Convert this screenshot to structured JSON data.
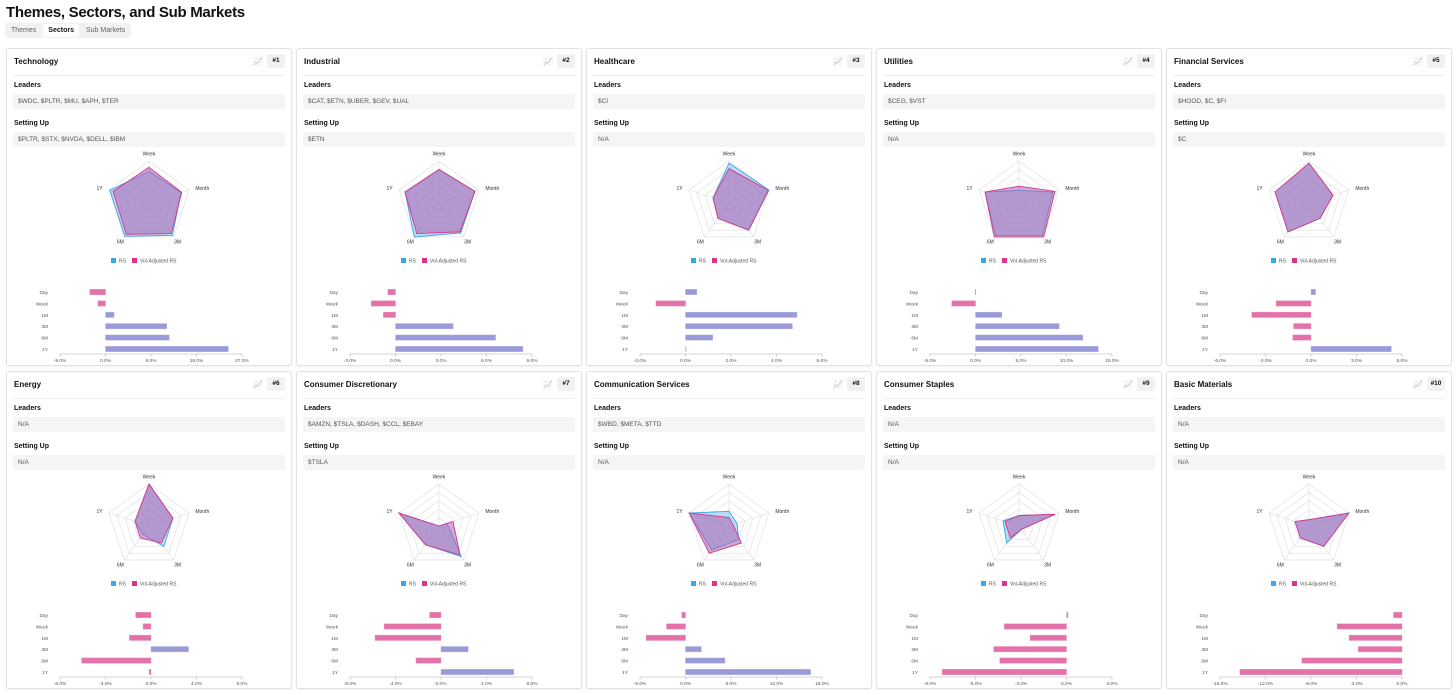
{
  "page_title": "Themes, Sectors, and Sub Markets",
  "tabs": [
    {
      "label": "Themes",
      "active": false
    },
    {
      "label": "Sectors",
      "active": true
    },
    {
      "label": "Sub Markets",
      "active": false
    }
  ],
  "labels": {
    "leaders": "Leaders",
    "setting_up": "Setting Up",
    "legend_rs": "RS",
    "legend_vol": "Vol-Adjusted RS",
    "chart_icon": "chart-icon"
  },
  "colors": {
    "rs": "#3aa6e6",
    "vol": "#d9358a",
    "pos_bar": "#9a9ad8",
    "neg_bar": "#e272a8"
  },
  "radar_axes": [
    "Week",
    "Month",
    "3M",
    "6M",
    "1Y"
  ],
  "bar_rows": [
    "Day",
    "Week",
    "1M",
    "3M",
    "6M",
    "1Y"
  ],
  "cards": [
    {
      "title": "Technology",
      "rank": "#1",
      "leaders": "$WDC, $PLTR, $MU, $APH, $TER",
      "setting_up": "$PLTR, $STX, $NVDA, $DELL, $IBM",
      "radar": {
        "rs": [
          75,
          80,
          95,
          98,
          98
        ],
        "vol": [
          85,
          82,
          90,
          92,
          90
        ]
      },
      "bars": {
        "values": [
          -3.1,
          -1.5,
          1.7,
          12.1,
          12.6,
          24.3
        ],
        "min": -9,
        "max": 27,
        "ticks": [
          "-9.0%",
          "0.0%",
          "9.0%",
          "18.0%",
          "27.0%"
        ]
      }
    },
    {
      "title": "Industrial",
      "rank": "#2",
      "leaders": "$CAT, $ETN, $UBER, $GEV, $UAL",
      "setting_up": "$ETN",
      "radar": {
        "rs": [
          80,
          90,
          88,
          100,
          85
        ],
        "vol": [
          80,
          90,
          85,
          90,
          85
        ]
      },
      "bars": {
        "values": [
          -0.5,
          -1.6,
          -0.8,
          3.8,
          6.6,
          8.4
        ],
        "min": -3,
        "max": 9,
        "ticks": [
          "-3.0%",
          "0.0%",
          "3.0%",
          "6.0%",
          "9.0%"
        ]
      }
    },
    {
      "title": "Healthcare",
      "rank": "#3",
      "leaders": "$CI",
      "setting_up": "N/A",
      "radar": {
        "rs": [
          95,
          100,
          80,
          45,
          40
        ],
        "vol": [
          82,
          98,
          80,
          45,
          40
        ]
      },
      "bars": {
        "values": [
          0.5,
          -1.3,
          4.9,
          4.7,
          1.2,
          0
        ],
        "min": -2,
        "max": 6,
        "ticks": [
          "-2.0%",
          "0.0%",
          "2.0%",
          "4.0%",
          "6.0%"
        ]
      }
    },
    {
      "title": "Utilities",
      "rank": "#4",
      "leaders": "$CEG, $VST",
      "setting_up": "N/A",
      "radar": {
        "rs": [
          30,
          85,
          95,
          95,
          85
        ],
        "vol": [
          40,
          90,
          100,
          100,
          85
        ]
      },
      "bars": {
        "values": [
          -0.05,
          -2.6,
          2.9,
          9.2,
          11.8,
          13.5
        ],
        "min": -5,
        "max": 15,
        "ticks": [
          "-5.0%",
          "0.0%",
          "5.0%",
          "10.0%",
          "15.0%"
        ]
      }
    },
    {
      "title": "Financial Services",
      "rank": "#5",
      "leaders": "$HOOD, $C, $FI",
      "setting_up": "$C",
      "radar": {
        "rs": [
          95,
          60,
          45,
          85,
          85
        ],
        "vol": [
          95,
          60,
          45,
          85,
          85
        ]
      },
      "bars": {
        "values": [
          0.3,
          -2.3,
          -3.9,
          -1.15,
          -1.2,
          5.3
        ],
        "min": -6,
        "max": 6,
        "ticks": [
          "-6.0%",
          "-3.0%",
          "0.0%",
          "3.0%",
          "6.0%"
        ]
      }
    },
    {
      "title": "Energy",
      "rank": "#6",
      "leaders": "N/A",
      "setting_up": "N/A",
      "radar": {
        "rs": [
          100,
          60,
          60,
          25,
          35
        ],
        "vol": [
          100,
          60,
          50,
          35,
          35
        ]
      },
      "bars": {
        "values": [
          -1.35,
          -0.7,
          -1.9,
          3.3,
          -6.1,
          -0.15
        ],
        "min": -8,
        "max": 8,
        "ticks": [
          "-8.0%",
          "-4.0%",
          "0.0%",
          "4.0%",
          "8.0%"
        ]
      }
    },
    {
      "title": "Consumer Discretionary",
      "rank": "#7",
      "leaders": "$AMZN, $TSLA, $DASH, $CCL, $EBAY",
      "setting_up": "$TSLA",
      "radar": {
        "rs": [
          0,
          20,
          90,
          55,
          100
        ],
        "vol": [
          0,
          35,
          85,
          55,
          100
        ]
      },
      "bars": {
        "values": [
          -1.0,
          -5.0,
          -5.8,
          2.4,
          -2.2,
          6.4
        ],
        "min": -8,
        "max": 8,
        "ticks": [
          "-8.0%",
          "-4.0%",
          "0.0%",
          "4.0%",
          "8.0%"
        ]
      }
    },
    {
      "title": "Communication Services",
      "rank": "#8",
      "leaders": "$WBD, $META, $TTD",
      "setting_up": "N/A",
      "radar": {
        "rs": [
          35,
          20,
          40,
          70,
          100
        ],
        "vol": [
          20,
          10,
          50,
          80,
          100
        ]
      },
      "bars": {
        "values": [
          -0.5,
          -2.5,
          -5.2,
          2.1,
          5.2,
          16.5
        ],
        "min": -6,
        "max": 18,
        "ticks": [
          "-6.0%",
          "0.0%",
          "6.0%",
          "12.0%",
          "18.0%"
        ]
      }
    },
    {
      "title": "Consumer Staples",
      "rank": "#9",
      "leaders": "N/A",
      "setting_up": "N/A",
      "radar": {
        "rs": [
          25,
          90,
          10,
          50,
          40
        ],
        "vol": [
          25,
          90,
          10,
          35,
          35
        ]
      },
      "bars": {
        "values": [
          0.1,
          -4.1,
          -2.4,
          -4.8,
          -4.4,
          -8.2
        ],
        "min": -9,
        "max": 3,
        "ticks": [
          "-9.0%",
          "-6.0%",
          "-3.0%",
          "0.0%",
          "3.0%"
        ]
      }
    },
    {
      "title": "Basic Materials",
      "rank": "#10",
      "leaders": "N/A",
      "setting_up": "N/A",
      "radar": {
        "rs": [
          15,
          100,
          60,
          35,
          35
        ],
        "vol": [
          15,
          100,
          60,
          35,
          35
        ]
      },
      "bars": {
        "values": [
          -0.75,
          -5.7,
          -4.65,
          -3.85,
          -8.8,
          -14.25
        ],
        "min": -16,
        "max": 0,
        "ticks": [
          "-16.0%",
          "-12.0%",
          "-8.0%",
          "-4.0%",
          "0.0%"
        ]
      }
    }
  ]
}
